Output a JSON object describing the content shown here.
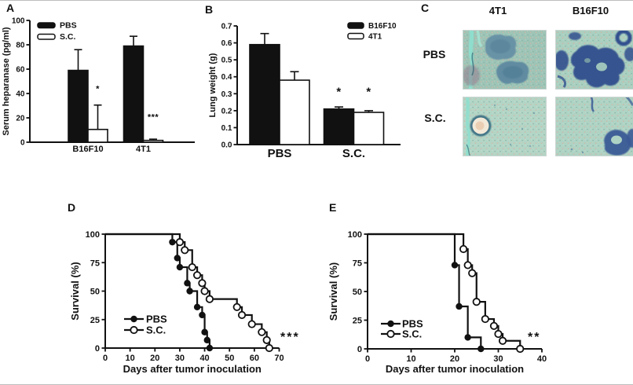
{
  "panels": {
    "A": {
      "letter": "A"
    },
    "B": {
      "letter": "B"
    },
    "C": {
      "letter": "C",
      "columns": [
        "4T1",
        "B16F10"
      ],
      "rows": [
        "PBS",
        "S.C."
      ],
      "images": [
        {
          "id": "4t1-pbs",
          "column": "4T1",
          "row": "PBS"
        },
        {
          "id": "b16f10-pbs",
          "column": "B16F10",
          "row": "PBS"
        },
        {
          "id": "4t1-sc",
          "column": "4T1",
          "row": "S.C."
        },
        {
          "id": "b16f10-sc",
          "column": "B16F10",
          "row": "S.C."
        }
      ]
    },
    "D": {
      "letter": "D"
    },
    "E": {
      "letter": "E"
    }
  },
  "colors": {
    "ink": "#111111",
    "bar_filled": "#111111",
    "bar_open": "#ffffff",
    "histology_base_pbs_4t1": "#9dc4b6",
    "histology_base_pbs_b16f10": "#a9cfc0",
    "histology_base_sc": "#b0d4c5",
    "histology_nodule_4t1": "#6690a5",
    "histology_nodule_b16f10": "#32508e",
    "histology_cyan": "#8ee0cf"
  },
  "chart_data": [
    {
      "id": "A",
      "type": "bar",
      "title": "",
      "ylabel": "Serum heparanase (pg/ml)",
      "xlabel": "",
      "ylim": [
        0,
        100
      ],
      "yticks": [
        0,
        20,
        40,
        60,
        80,
        100
      ],
      "ydecimals": 0,
      "categories": [
        "B16F10",
        "4T1"
      ],
      "legend_position": "top-left",
      "series": [
        {
          "name": "PBS",
          "fill": "#111111",
          "values": [
            59,
            79
          ],
          "errors": [
            17,
            8
          ],
          "sig": [
            null,
            null
          ],
          "sig_y": [
            null,
            null
          ]
        },
        {
          "name": "S.C.",
          "fill": "#ffffff",
          "values": [
            10.5,
            1.5
          ],
          "errors": [
            20,
            1
          ],
          "sig": [
            "*",
            "***"
          ],
          "sig_y": [
            44,
            21
          ]
        }
      ]
    },
    {
      "id": "B",
      "type": "bar",
      "title": "",
      "ylabel": "Lung weight (g)",
      "xlabel": "",
      "ylim": [
        0,
        0.7
      ],
      "yticks": [
        0,
        0.1,
        0.2,
        0.3,
        0.4,
        0.5,
        0.6,
        0.7
      ],
      "ydecimals": 1,
      "categories": [
        "PBS",
        "S.C."
      ],
      "legend_position": "top-right",
      "series": [
        {
          "name": "B16F10",
          "fill": "#111111",
          "values": [
            0.59,
            0.21
          ],
          "errors": [
            0.065,
            0.012
          ],
          "sig": [
            null,
            "*"
          ],
          "sig_y": [
            null,
            0.315
          ]
        },
        {
          "name": "4T1",
          "fill": "#ffffff",
          "values": [
            0.38,
            0.19
          ],
          "errors": [
            0.05,
            0.01
          ],
          "sig": [
            null,
            "*"
          ],
          "sig_y": [
            null,
            0.315
          ]
        }
      ]
    },
    {
      "id": "D",
      "type": "km",
      "title": "",
      "xlabel": "Days after tumor inoculation",
      "ylabel": "Survival (%)",
      "xlim": [
        0,
        70
      ],
      "xticks": [
        0,
        10,
        20,
        30,
        40,
        50,
        60,
        70
      ],
      "ylim": [
        0,
        100
      ],
      "yticks": [
        0,
        25,
        50,
        75,
        100
      ],
      "significance": "***",
      "legend_position": "inside-left-bottom",
      "series": [
        {
          "name": "PBS",
          "marker": "filled",
          "steps": [
            [
              27,
              93
            ],
            [
              29,
              79
            ],
            [
              30,
              71
            ],
            [
              33,
              57
            ],
            [
              34,
              50
            ],
            [
              37,
              36
            ],
            [
              39,
              29
            ],
            [
              40,
              14
            ],
            [
              41,
              7
            ],
            [
              42,
              0
            ]
          ]
        },
        {
          "name": "S.C.",
          "marker": "open",
          "steps": [
            [
              30,
              93
            ],
            [
              32,
              86
            ],
            [
              35,
              71
            ],
            [
              37,
              64
            ],
            [
              39,
              57
            ],
            [
              40,
              50
            ],
            [
              42,
              43
            ],
            [
              53,
              36
            ],
            [
              55,
              29
            ],
            [
              59,
              21
            ],
            [
              63,
              14
            ],
            [
              65,
              7
            ],
            [
              66,
              0
            ]
          ]
        }
      ]
    },
    {
      "id": "E",
      "type": "km",
      "title": "",
      "xlabel": "Days after tumor inoculation",
      "ylabel": "Survival (%)",
      "xlim": [
        0,
        40
      ],
      "xticks": [
        0,
        10,
        20,
        30,
        40
      ],
      "ylim": [
        0,
        100
      ],
      "yticks": [
        0,
        25,
        50,
        75,
        100
      ],
      "significance": "**",
      "legend_position": "inside-left-bottom",
      "series": [
        {
          "name": "PBS",
          "marker": "filled",
          "steps": [
            [
              20,
              73
            ],
            [
              21,
              37
            ],
            [
              23,
              10
            ],
            [
              26,
              0
            ]
          ]
        },
        {
          "name": "S.C.",
          "marker": "open",
          "steps": [
            [
              22,
              87
            ],
            [
              23,
              73
            ],
            [
              24,
              66
            ],
            [
              25,
              41
            ],
            [
              27,
              26
            ],
            [
              29,
              20
            ],
            [
              30,
              13
            ],
            [
              31,
              7
            ],
            [
              35,
              0
            ]
          ]
        }
      ]
    }
  ]
}
